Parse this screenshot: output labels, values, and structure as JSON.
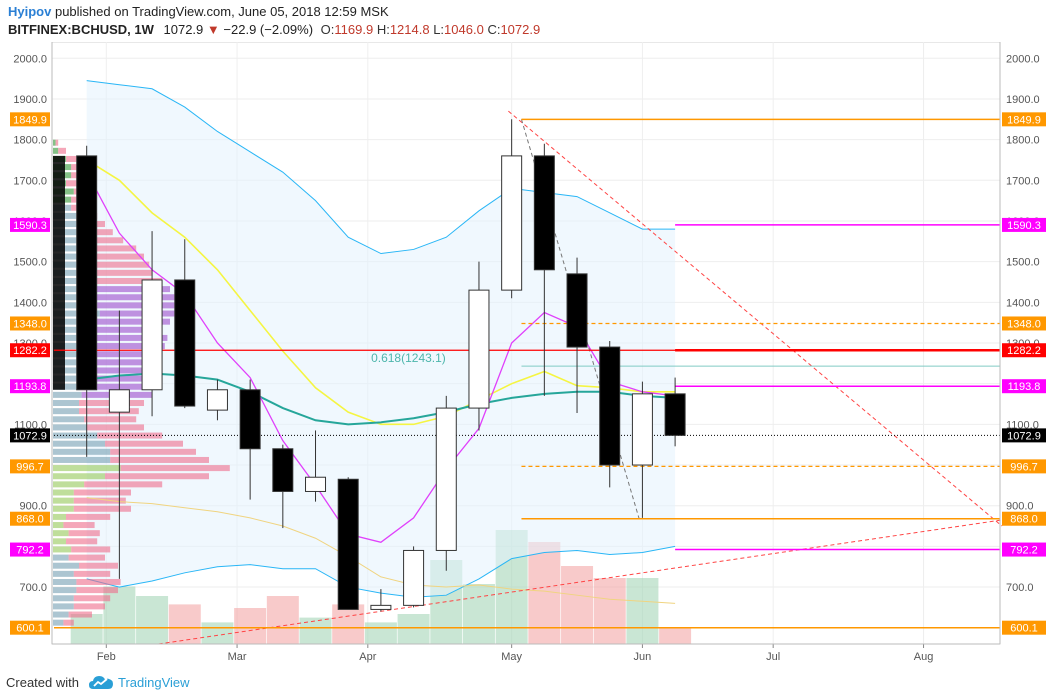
{
  "header": {
    "author": "Hyipov",
    "published_text": "published on TradingView.com, June 05, 2018 12:59 MSK",
    "symbol": "BITFINEX:BCHUSD, 1W",
    "last": "1072.9",
    "arrow": "▼",
    "change": "−22.9 (−2.09%)",
    "o_label": "O:",
    "o_value": "1169.9",
    "h_label": "H:",
    "h_value": "1214.8",
    "l_label": "L:",
    "l_value": "1046.0",
    "c_label": "C:",
    "c_value": "1072.9"
  },
  "footer": {
    "created_with": "Created with",
    "brand": "TradingView"
  },
  "colors": {
    "orange": "#ff9800",
    "magenta": "#ff00ff",
    "red": "#ff0000",
    "black": "#000000",
    "up_fill": "#ffffff",
    "down_fill": "#000000",
    "teal": "#26a69a",
    "yellow": "#ffff33",
    "violet": "#e040fb",
    "blue": "#2196f3"
  },
  "chart_data": {
    "type": "candlestick",
    "ylim": [
      560,
      2040
    ],
    "y_ticks": [
      700,
      800,
      900,
      1000,
      1100,
      1200,
      1300,
      1400,
      1500,
      1600,
      1700,
      1800,
      1900,
      2000
    ],
    "y_tick_labels": [
      "700.0",
      "800.0",
      "900.0",
      "1000.0",
      "1100.0",
      "1200.0",
      "1300.0",
      "1400.0",
      "1500.0",
      "1600.0",
      "1700.0",
      "1800.0",
      "1900.0",
      "2000.0"
    ],
    "x_labels": [
      {
        "label": "Feb",
        "week": 0.6
      },
      {
        "label": "Mar",
        "week": 4.6
      },
      {
        "label": "Apr",
        "week": 8.6
      },
      {
        "label": "May",
        "week": 13
      },
      {
        "label": "Jun",
        "week": 17
      },
      {
        "label": "Jul",
        "week": 21
      },
      {
        "label": "Aug",
        "week": 25.6
      }
    ],
    "week_range": [
      -1,
      28
    ],
    "candles": [
      {
        "o": 1760,
        "h": 1785,
        "l": 1020,
        "c": 1185
      },
      {
        "o": 1130,
        "h": 1380,
        "l": 720,
        "c": 1185
      },
      {
        "o": 1185,
        "h": 1575,
        "l": 1120,
        "c": 1455
      },
      {
        "o": 1455,
        "h": 1555,
        "l": 1140,
        "c": 1145
      },
      {
        "o": 1135,
        "h": 1210,
        "l": 1110,
        "c": 1185
      },
      {
        "o": 1185,
        "h": 1210,
        "l": 915,
        "c": 1040
      },
      {
        "o": 1040,
        "h": 1050,
        "l": 845,
        "c": 935
      },
      {
        "o": 935,
        "h": 1085,
        "l": 910,
        "c": 970
      },
      {
        "o": 965,
        "h": 970,
        "l": 655,
        "c": 645
      },
      {
        "o": 645,
        "h": 695,
        "l": 640,
        "c": 655
      },
      {
        "o": 655,
        "h": 800,
        "l": 650,
        "c": 790
      },
      {
        "o": 790,
        "h": 1170,
        "l": 740,
        "c": 1140
      },
      {
        "o": 1140,
        "h": 1500,
        "l": 1085,
        "c": 1430
      },
      {
        "o": 1430,
        "h": 1850,
        "l": 1410,
        "c": 1760
      },
      {
        "o": 1760,
        "h": 1790,
        "l": 1170,
        "c": 1480
      },
      {
        "o": 1470,
        "h": 1510,
        "l": 1128,
        "c": 1290
      },
      {
        "o": 1290,
        "h": 1305,
        "l": 945,
        "c": 1000
      },
      {
        "o": 1000,
        "h": 1205,
        "l": 870,
        "c": 1175
      },
      {
        "o": 1175,
        "h": 1215,
        "l": 1046,
        "c": 1072.9
      }
    ],
    "volume": [
      {
        "v": 0.25,
        "up": true
      },
      {
        "v": 0.48,
        "up": true
      },
      {
        "v": 0.4,
        "up": true
      },
      {
        "v": 0.33,
        "up": false
      },
      {
        "v": 0.18,
        "up": true
      },
      {
        "v": 0.3,
        "up": false
      },
      {
        "v": 0.4,
        "up": false
      },
      {
        "v": 0.22,
        "up": true
      },
      {
        "v": 0.33,
        "up": false
      },
      {
        "v": 0.18,
        "up": true
      },
      {
        "v": 0.25,
        "up": true
      },
      {
        "v": 0.7,
        "up": true
      },
      {
        "v": 0.5,
        "up": true
      },
      {
        "v": 0.95,
        "up": true
      },
      {
        "v": 0.85,
        "up": false
      },
      {
        "v": 0.65,
        "up": false
      },
      {
        "v": 0.55,
        "up": false
      },
      {
        "v": 0.55,
        "up": true
      },
      {
        "v": 0.13,
        "up": false
      }
    ],
    "ma_fast": [
      1720,
      1570,
      1480,
      1420,
      1300,
      1215,
      1060,
      950,
      830,
      810,
      870,
      990,
      1090,
      1300,
      1375,
      1340,
      1205,
      1180,
      1170
    ],
    "ma_teal": [
      1210,
      1220,
      1225,
      1220,
      1210,
      1180,
      1140,
      1110,
      1100,
      1105,
      1115,
      1130,
      1150,
      1165,
      1175,
      1180,
      1180,
      1170,
      1165
    ],
    "ma_yellow": [
      1750,
      1700,
      1620,
      1560,
      1480,
      1380,
      1280,
      1190,
      1130,
      1100,
      1100,
      1120,
      1160,
      1200,
      1230,
      1195,
      1190,
      1180,
      1180
    ],
    "band_upper": [
      1945,
      1935,
      1925,
      1880,
      1820,
      1770,
      1720,
      1650,
      1560,
      1520,
      1530,
      1560,
      1625,
      1680,
      1670,
      1660,
      1620,
      1580,
      1580
    ],
    "band_lower": [
      720,
      700,
      715,
      735,
      750,
      755,
      745,
      745,
      700,
      685,
      675,
      680,
      720,
      770,
      785,
      790,
      780,
      785,
      800
    ],
    "ma_slow": [
      920,
      910,
      905,
      895,
      885,
      870,
      850,
      820,
      775,
      725,
      705,
      700,
      705,
      695,
      690,
      680,
      670,
      665,
      660
    ],
    "levels": [
      {
        "price": 1849.9,
        "label": "1849.9",
        "color": "#ff9800",
        "style": "solid",
        "from": 13.3,
        "width": 1.5
      },
      {
        "price": 1590.3,
        "label": "1590.3",
        "color": "#ff00ff",
        "style": "solid",
        "from": 18,
        "width": 1.5
      },
      {
        "price": 1348.0,
        "label": "1348.0",
        "color": "#ff9800",
        "style": "dash",
        "from": 13.3,
        "width": 1.2
      },
      {
        "price": 1282.2,
        "label": "1282.2",
        "color": "#ff0000",
        "style": "solid",
        "from": -1,
        "width": 1.2
      },
      {
        "price": 1282.2,
        "label": "",
        "color": "#ff0000",
        "style": "solid",
        "from": 18,
        "width": 2.5
      },
      {
        "price": 1243.1,
        "label": "",
        "color": "#80cbc4",
        "style": "solid",
        "from": 13.3,
        "width": 1
      },
      {
        "price": 1193.8,
        "label": "1193.8",
        "color": "#ff00ff",
        "style": "solid",
        "from": 18,
        "width": 1.5
      },
      {
        "price": 1072.9,
        "label": "1072.9",
        "color": "#000000",
        "style": "dot",
        "from": -1,
        "width": 1
      },
      {
        "price": 996.7,
        "label": "996.7",
        "color": "#ff9800",
        "style": "dash",
        "from": 13.3,
        "width": 1.2
      },
      {
        "price": 868.0,
        "label": "868.0",
        "color": "#ff9800",
        "style": "solid",
        "from": 13.3,
        "width": 1.5
      },
      {
        "price": 792.2,
        "label": "792.2",
        "color": "#ff00ff",
        "style": "solid",
        "from": 18,
        "width": 1.5
      },
      {
        "price": 600.1,
        "label": "600.1",
        "color": "#ff9800",
        "style": "solid",
        "from": -1,
        "width": 1.5
      }
    ],
    "fib_label": "0.618(1243.1)",
    "trend_down": {
      "w1": 12.9,
      "p1": 1870,
      "w2": 28,
      "p2": 850
    },
    "trend_up": {
      "w1": 2.2,
      "p1": 560,
      "w2": 28,
      "p2": 865
    },
    "trend_dash_gray": {
      "w1": 13.3,
      "p1": 1849.9,
      "w2": 16.9,
      "p2": 868
    },
    "vp_rows": [
      {
        "p": 1790,
        "bl": 0.02,
        "pk": 0.01
      },
      {
        "p": 1770,
        "bl": 0.05,
        "pk": 0.03
      },
      {
        "p": 1750,
        "bl": 0.09,
        "pk": 0.04
      },
      {
        "p": 1730,
        "bl": 0.12,
        "pk": 0.05
      },
      {
        "p": 1710,
        "bl": 0.13,
        "pk": 0.06
      },
      {
        "p": 1690,
        "bl": 0.12,
        "pk": 0.07
      },
      {
        "p": 1670,
        "bl": 0.14,
        "pk": 0.06
      },
      {
        "p": 1650,
        "bl": 0.15,
        "pk": 0.08
      },
      {
        "p": 1630,
        "bl": 0.16,
        "pk": 0.09
      },
      {
        "p": 1610,
        "bl": 0.17,
        "pk": 0.08
      },
      {
        "p": 1590,
        "bl": 0.2,
        "pk": 0.1
      },
      {
        "p": 1570,
        "bl": 0.23,
        "pk": 0.12
      },
      {
        "p": 1550,
        "bl": 0.27,
        "pk": 0.16
      },
      {
        "p": 1530,
        "bl": 0.32,
        "pk": 0.18
      },
      {
        "p": 1510,
        "bl": 0.35,
        "pk": 0.2
      },
      {
        "p": 1490,
        "bl": 0.37,
        "pk": 0.22
      },
      {
        "p": 1470,
        "bl": 0.38,
        "pk": 0.24
      },
      {
        "p": 1450,
        "bl": 0.42,
        "pk": 0.28
      },
      {
        "p": 1430,
        "bl": 0.45,
        "pk": 0.32
      },
      {
        "p": 1410,
        "bl": 0.5,
        "pk": 0.36
      },
      {
        "p": 1390,
        "bl": 0.52,
        "pk": 0.35
      },
      {
        "p": 1370,
        "bl": 0.48,
        "pk": 0.3
      },
      {
        "p": 1350,
        "bl": 0.45,
        "pk": 0.3
      },
      {
        "p": 1330,
        "bl": 0.42,
        "pk": 0.28
      },
      {
        "p": 1310,
        "bl": 0.44,
        "pk": 0.3
      },
      {
        "p": 1290,
        "bl": 0.43,
        "pk": 0.29
      },
      {
        "p": 1270,
        "bl": 0.4,
        "pk": 0.28
      },
      {
        "p": 1250,
        "bl": 0.42,
        "pk": 0.3
      },
      {
        "p": 1230,
        "bl": 0.38,
        "pk": 0.27
      },
      {
        "p": 1210,
        "bl": 0.36,
        "pk": 0.26
      },
      {
        "p": 1190,
        "bl": 0.4,
        "pk": 0.28
      },
      {
        "p": 1170,
        "bl": 0.38,
        "pk": 0.27
      },
      {
        "p": 1150,
        "bl": 0.35,
        "pk": 0.25
      },
      {
        "p": 1130,
        "bl": 0.33,
        "pk": 0.23
      },
      {
        "p": 1110,
        "bl": 0.32,
        "pk": 0.2
      },
      {
        "p": 1090,
        "bl": 0.35,
        "pk": 0.22
      },
      {
        "p": 1070,
        "bl": 0.42,
        "pk": 0.25
      },
      {
        "p": 1050,
        "bl": 0.5,
        "pk": 0.3
      },
      {
        "p": 1030,
        "bl": 0.55,
        "pk": 0.33
      },
      {
        "p": 1010,
        "bl": 0.6,
        "pk": 0.38
      },
      {
        "p": 990,
        "bl": 0.68,
        "pk": 0.42
      },
      {
        "p": 970,
        "bl": 0.6,
        "pk": 0.4
      },
      {
        "p": 950,
        "bl": 0.42,
        "pk": 0.3
      },
      {
        "p": 930,
        "bl": 0.3,
        "pk": 0.22
      },
      {
        "p": 910,
        "bl": 0.28,
        "pk": 0.2
      },
      {
        "p": 890,
        "bl": 0.3,
        "pk": 0.22
      },
      {
        "p": 870,
        "bl": 0.22,
        "pk": 0.17
      },
      {
        "p": 850,
        "bl": 0.16,
        "pk": 0.12
      },
      {
        "p": 830,
        "bl": 0.18,
        "pk": 0.12
      },
      {
        "p": 810,
        "bl": 0.17,
        "pk": 0.12
      },
      {
        "p": 790,
        "bl": 0.22,
        "pk": 0.15
      },
      {
        "p": 770,
        "bl": 0.2,
        "pk": 0.14
      },
      {
        "p": 750,
        "bl": 0.25,
        "pk": 0.15
      },
      {
        "p": 730,
        "bl": 0.22,
        "pk": 0.14
      },
      {
        "p": 710,
        "bl": 0.26,
        "pk": 0.17
      },
      {
        "p": 690,
        "bl": 0.25,
        "pk": 0.16
      },
      {
        "p": 670,
        "bl": 0.22,
        "pk": 0.14
      },
      {
        "p": 650,
        "bl": 0.2,
        "pk": 0.12
      },
      {
        "p": 630,
        "bl": 0.15,
        "pk": 0.09
      },
      {
        "p": 610,
        "bl": 0.08,
        "pk": 0.04
      }
    ]
  }
}
